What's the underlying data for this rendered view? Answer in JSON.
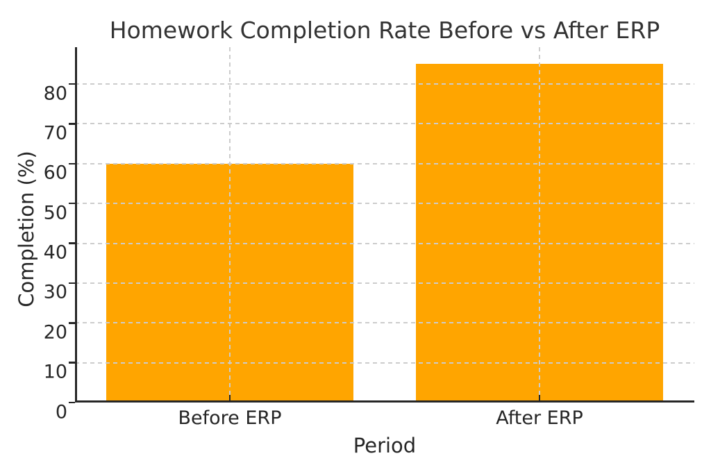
{
  "chart_data": {
    "type": "bar",
    "title": "Homework Completion Rate Before vs After ERP",
    "categories": [
      "Before ERP",
      "After ERP"
    ],
    "values": [
      60,
      85
    ],
    "xlabel": "Period",
    "ylabel": "Completion (%)",
    "ylim": [
      0,
      89.25
    ],
    "yticks": [
      0,
      10,
      20,
      30,
      40,
      50,
      60,
      70,
      80
    ],
    "bar_color": "#FFA500",
    "bar_width_fraction": 0.8,
    "grid": "on",
    "grid_style": "dashed",
    "grid_color": "#cccccc",
    "grid_above_bars": true,
    "legend": "none",
    "spines": [
      "left",
      "bottom"
    ],
    "axis_color": "#262626"
  }
}
